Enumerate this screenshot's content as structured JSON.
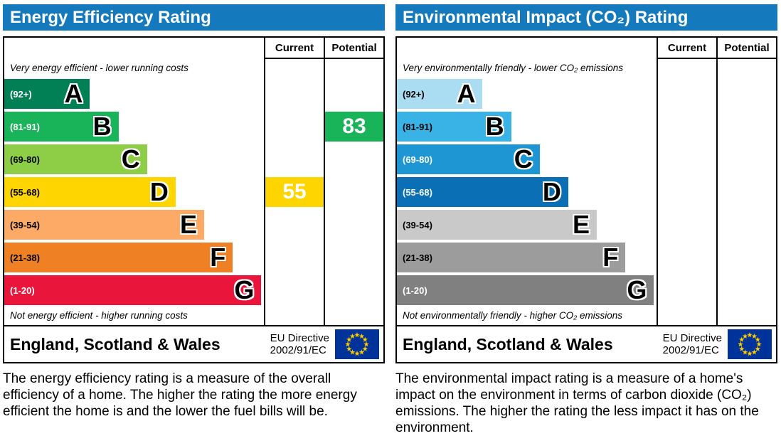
{
  "colors": {
    "header": "#1479bd",
    "border": "#000000"
  },
  "panels": [
    {
      "title": "Energy Efficiency Rating",
      "columns": {
        "current": "Current",
        "potential": "Potential"
      },
      "top_note": "Very energy efficient - lower running costs",
      "bottom_note": "Not energy efficient - higher running costs",
      "bands": [
        {
          "range": "(92+)",
          "letter": "A",
          "color": "#008054",
          "range_color": "#ffffff"
        },
        {
          "range": "(81-91)",
          "letter": "B",
          "color": "#19b459",
          "range_color": "#ffffff"
        },
        {
          "range": "(69-80)",
          "letter": "C",
          "color": "#8dce46",
          "range_color": "#000000"
        },
        {
          "range": "(55-68)",
          "letter": "D",
          "color": "#ffd500",
          "range_color": "#000000"
        },
        {
          "range": "(39-54)",
          "letter": "E",
          "color": "#fcaa65",
          "range_color": "#000000"
        },
        {
          "range": "(21-38)",
          "letter": "F",
          "color": "#ef8023",
          "range_color": "#000000"
        },
        {
          "range": "(1-20)",
          "letter": "G",
          "color": "#e9153b",
          "range_color": "#ffffff"
        }
      ],
      "current": {
        "value": "55",
        "band": "D",
        "color": "#ffd500",
        "text_color": "#ffffff"
      },
      "potential": {
        "value": "83",
        "band": "B",
        "color": "#19b459",
        "text_color": "#ffffff"
      },
      "footer": {
        "region": "England, Scotland & Wales",
        "directive_line1": "EU Directive",
        "directive_line2": "2002/91/EC"
      },
      "description": "The energy efficiency rating is a measure of the overall efficiency of a home. The higher the rating the more energy efficient the home is and the lower the fuel bills will be."
    },
    {
      "title": "Environmental Impact (CO₂) Rating",
      "columns": {
        "current": "Current",
        "potential": "Potential"
      },
      "top_note": "Very environmentally friendly - lower CO₂ emissions",
      "bottom_note": "Not environmentally friendly - higher CO₂ emissions",
      "bands": [
        {
          "range": "(92+)",
          "letter": "A",
          "color": "#aadcf2",
          "range_color": "#000000"
        },
        {
          "range": "(81-91)",
          "letter": "B",
          "color": "#39b3e6",
          "range_color": "#000000"
        },
        {
          "range": "(69-80)",
          "letter": "C",
          "color": "#1e96d3",
          "range_color": "#ffffff"
        },
        {
          "range": "(55-68)",
          "letter": "D",
          "color": "#0a6fb4",
          "range_color": "#ffffff"
        },
        {
          "range": "(39-54)",
          "letter": "E",
          "color": "#c9c9c9",
          "range_color": "#000000"
        },
        {
          "range": "(21-38)",
          "letter": "F",
          "color": "#9c9c9c",
          "range_color": "#000000"
        },
        {
          "range": "(1-20)",
          "letter": "G",
          "color": "#808080",
          "range_color": "#ffffff"
        }
      ],
      "current": null,
      "potential": null,
      "footer": {
        "region": "England, Scotland & Wales",
        "directive_line1": "EU Directive",
        "directive_line2": "2002/91/EC"
      },
      "description": "The environmental impact rating is a measure of a home's impact on the environment in terms of carbon dioxide (CO₂) emissions. The higher the rating the less impact it has on the environment."
    }
  ],
  "chart_data": [
    {
      "type": "bar",
      "title": "Energy Efficiency Rating",
      "categories": [
        "A (92+)",
        "B (81-91)",
        "C (69-80)",
        "D (55-68)",
        "E (39-54)",
        "F (21-38)",
        "G (1-20)"
      ],
      "series": [
        {
          "name": "Current",
          "values": [
            null,
            null,
            null,
            55,
            null,
            null,
            null
          ]
        },
        {
          "name": "Potential",
          "values": [
            null,
            83,
            null,
            null,
            null,
            null,
            null
          ]
        }
      ],
      "current_value": 55,
      "current_band": "D",
      "potential_value": 83,
      "potential_band": "B",
      "annotations": [
        "Very energy efficient - lower running costs",
        "Not energy efficient - higher running costs",
        "England, Scotland & Wales",
        "EU Directive 2002/91/EC"
      ]
    },
    {
      "type": "bar",
      "title": "Environmental Impact (CO₂) Rating",
      "categories": [
        "A (92+)",
        "B (81-91)",
        "C (69-80)",
        "D (55-68)",
        "E (39-54)",
        "F (21-38)",
        "G (1-20)"
      ],
      "series": [
        {
          "name": "Current",
          "values": [
            null,
            null,
            null,
            null,
            null,
            null,
            null
          ]
        },
        {
          "name": "Potential",
          "values": [
            null,
            null,
            null,
            null,
            null,
            null,
            null
          ]
        }
      ],
      "current_value": null,
      "current_band": null,
      "potential_value": null,
      "potential_band": null,
      "annotations": [
        "Very environmentally friendly - lower CO₂ emissions",
        "Not environmentally friendly - higher CO₂ emissions",
        "England, Scotland & Wales",
        "EU Directive 2002/91/EC"
      ]
    }
  ]
}
